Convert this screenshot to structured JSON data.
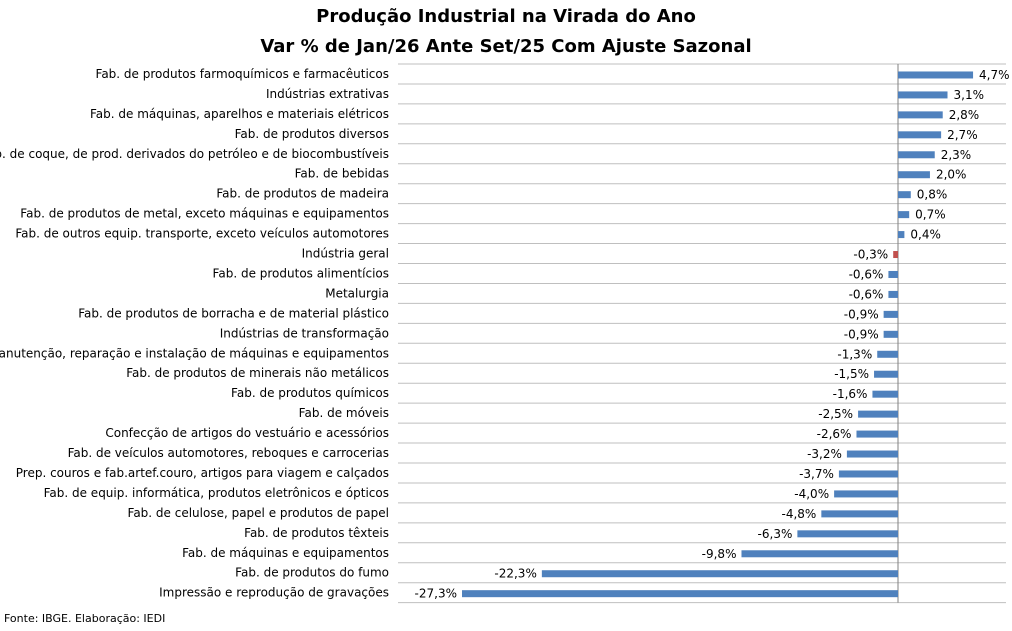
{
  "chart_data": {
    "type": "bar",
    "orientation": "horizontal",
    "title": "Produção Industrial na Virada do Ano",
    "subtitle": "Var % de Jan/26 Ante Set/25 Com Ajuste Sazonal",
    "xlabel": "",
    "ylabel": "",
    "xlim": [
      -28,
      5
    ],
    "grid": true,
    "series": [
      {
        "name": "Var %",
        "categories": [
          "Fab. de produtos farmoquímicos e farmacêuticos",
          "Indústrias extrativas",
          "Fab. de máquinas, aparelhos e materiais elétricos",
          "Fab. de produtos diversos",
          "Fab. de coque, de prod. derivados do petróleo e de biocombustíveis",
          "Fab. de bebidas",
          "Fab. de produtos de madeira",
          "Fab. de produtos de metal, exceto máquinas e equipamentos",
          "Fab. de outros equip. transporte, exceto veículos automotores",
          "Indústria geral",
          "Fab. de produtos alimentícios",
          "Metalurgia",
          "Fab. de produtos de borracha e de material plástico",
          "Indústrias de transformação",
          "Manutenção, reparação e instalação de máquinas e equipamentos",
          "Fab. de produtos de minerais não metálicos",
          "Fab. de produtos químicos",
          "Fab. de móveis",
          "Confecção de artigos do vestuário e acessórios",
          "Fab. de veículos automotores, reboques e carrocerias",
          "Prep. couros e fab.artef.couro, artigos para viagem e calçados",
          "Fab. de equip. informática, produtos eletrônicos e ópticos",
          "Fab. de celulose, papel e produtos de papel",
          "Fab. de produtos têxteis",
          "Fab. de máquinas e equipamentos",
          "Fab. de produtos do fumo",
          "Impressão e reprodução de gravações"
        ],
        "values": [
          4.7,
          3.1,
          2.8,
          2.7,
          2.3,
          2.0,
          0.8,
          0.7,
          0.4,
          -0.3,
          -0.6,
          -0.6,
          -0.9,
          -0.9,
          -1.3,
          -1.5,
          -1.6,
          -2.5,
          -2.6,
          -3.2,
          -3.7,
          -4.0,
          -4.8,
          -6.3,
          -9.8,
          -22.3,
          -27.3
        ],
        "labels": [
          "4,7%",
          "3,1%",
          "2,8%",
          "2,7%",
          "2,3%",
          "2,0%",
          "0,8%",
          "0,7%",
          "0,4%",
          "-0,3%",
          "-0,6%",
          "-0,6%",
          "-0,9%",
          "-0,9%",
          "-1,3%",
          "-1,5%",
          "-1,6%",
          "-2,5%",
          "-2,6%",
          "-3,2%",
          "-3,7%",
          "-4,0%",
          "-4,8%",
          "-6,3%",
          "-9,8%",
          "-22,3%",
          "-27,3%"
        ],
        "highlight_index": 9
      }
    ],
    "colors": {
      "bar": "#4F81BD",
      "highlight": "#C0504D",
      "grid": "#BFBFBF",
      "axis": "#808080"
    }
  },
  "source": "Fonte: IBGE. Elaboração: IEDI"
}
